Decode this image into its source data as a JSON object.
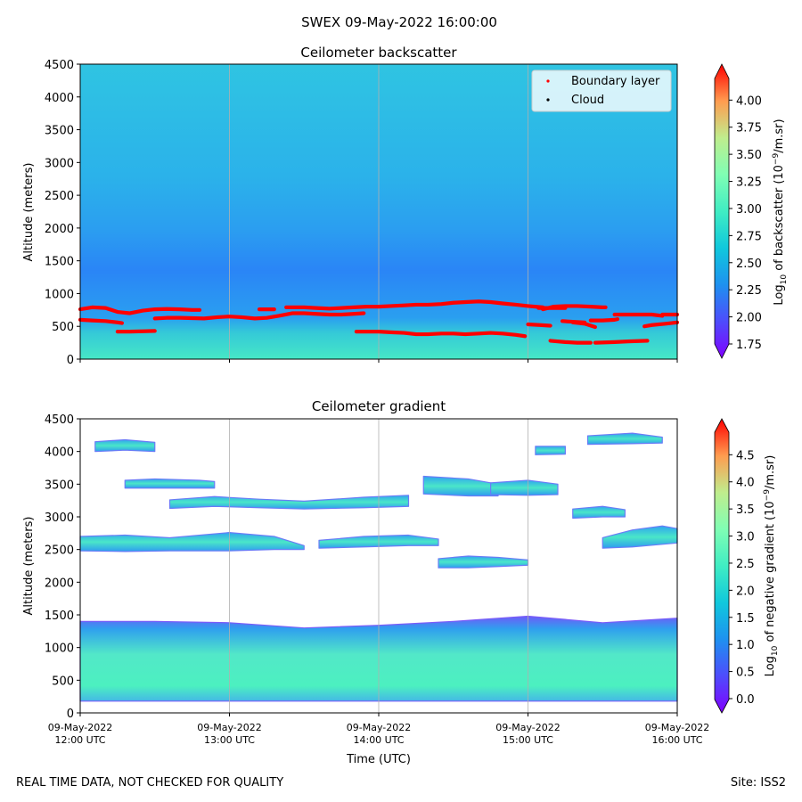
{
  "figure": {
    "suptitle": "SWEX 09-May-2022 16:00:00",
    "footer_left": "REAL TIME DATA, NOT CHECKED FOR QUALITY",
    "footer_right": "Site: ISS2"
  },
  "chart_data": [
    {
      "type": "heatmap",
      "title": "Ceilometer backscatter",
      "ylabel": "Altitude (meters)",
      "xlabel": "",
      "ylim": [
        0,
        4500
      ],
      "yticks": [
        0,
        500,
        1000,
        1500,
        2000,
        2500,
        3000,
        3500,
        4000,
        4500
      ],
      "xtick_labels": [],
      "grid": "vertical at 13:00, 14:00, 15:00 UTC",
      "colorbar": {
        "label_prefix": "Log",
        "label_sub": "10",
        "label_rest": " of backscatter (10",
        "label_sup": "−9",
        "label_end": "/m.sr)",
        "ticks": [
          "1.75",
          "2.00",
          "2.25",
          "2.50",
          "2.75",
          "3.00",
          "3.25",
          "3.50",
          "3.75",
          "4.00"
        ],
        "range": [
          1.75,
          4.2
        ]
      },
      "legend": {
        "placement": "top-right",
        "entries": [
          {
            "label": "Boundary layer",
            "color": "#ff0000"
          },
          {
            "label": "Cloud",
            "color": "#000000"
          }
        ]
      },
      "series": [
        {
          "name": "Boundary layer",
          "color": "#ff0000",
          "segments": [
            {
              "x": [
                12.0,
                12.08,
                12.17,
                12.25,
                12.33,
                12.42,
                12.5,
                12.58,
                12.67,
                12.75,
                12.8
              ],
              "y": [
                760,
                790,
                780,
                720,
                700,
                740,
                760,
                765,
                760,
                750,
                750
              ]
            },
            {
              "x": [
                12.0,
                12.08,
                12.17,
                12.25,
                12.28
              ],
              "y": [
                600,
                590,
                580,
                560,
                550
              ]
            },
            {
              "x": [
                12.25,
                12.33,
                12.42,
                12.5
              ],
              "y": [
                420,
                420,
                425,
                430
              ]
            },
            {
              "x": [
                12.5,
                12.58,
                12.67,
                12.75,
                12.83,
                12.92,
                13.0,
                13.08,
                13.17,
                13.25,
                13.33,
                13.42,
                13.5,
                13.58,
                13.67,
                13.75,
                13.83,
                13.9
              ],
              "y": [
                620,
                630,
                630,
                625,
                620,
                640,
                650,
                640,
                620,
                630,
                660,
                700,
                700,
                690,
                680,
                680,
                690,
                700
              ]
            },
            {
              "x": [
                13.2,
                13.3
              ],
              "y": [
                760,
                760
              ]
            },
            {
              "x": [
                13.38,
                13.5,
                13.58,
                13.67,
                13.75,
                13.83,
                13.92,
                14.0,
                14.08,
                14.17,
                14.25,
                14.33,
                14.42,
                14.5,
                14.58,
                14.67,
                14.75,
                14.83,
                14.92,
                15.0,
                15.1
              ],
              "y": [
                790,
                790,
                780,
                770,
                780,
                790,
                800,
                800,
                810,
                820,
                830,
                830,
                840,
                860,
                870,
                880,
                870,
                850,
                830,
                810,
                790
              ]
            },
            {
              "x": [
                13.85,
                13.92,
                14.0,
                14.08,
                14.17,
                14.25,
                14.33,
                14.42,
                14.5,
                14.58,
                14.67,
                14.75,
                14.83,
                14.92,
                14.98
              ],
              "y": [
                420,
                420,
                420,
                410,
                400,
                380,
                380,
                390,
                390,
                380,
                390,
                400,
                390,
                370,
                350
              ]
            },
            {
              "x": [
                15.0,
                15.08,
                15.15
              ],
              "y": [
                530,
                520,
                510
              ]
            },
            {
              "x": [
                15.1,
                15.17,
                15.25,
                15.33,
                15.42,
                15.5,
                15.52
              ],
              "y": [
                760,
                800,
                810,
                810,
                800,
                790,
                790
              ]
            },
            {
              "x": [
                15.07,
                15.25
              ],
              "y": [
                780,
                780
              ]
            },
            {
              "x": [
                15.23,
                15.3,
                15.38
              ],
              "y": [
                580,
                570,
                560
              ]
            },
            {
              "x": [
                15.3,
                15.38,
                15.45
              ],
              "y": [
                560,
                540,
                490
              ]
            },
            {
              "x": [
                15.42,
                15.5,
                15.58,
                15.6
              ],
              "y": [
                590,
                590,
                600,
                610
              ]
            },
            {
              "x": [
                15.58,
                15.67,
                15.75,
                15.83,
                15.9
              ],
              "y": [
                680,
                680,
                680,
                680,
                660
              ]
            },
            {
              "x": [
                15.9,
                16.0
              ],
              "y": [
                680,
                680
              ]
            },
            {
              "x": [
                15.78,
                15.83,
                15.92,
                16.0
              ],
              "y": [
                500,
                520,
                540,
                560
              ]
            },
            {
              "x": [
                15.15,
                15.25,
                15.33,
                15.42
              ],
              "y": [
                280,
                260,
                250,
                250
              ]
            },
            {
              "x": [
                15.45,
                15.58,
                15.67,
                15.8
              ],
              "y": [
                250,
                260,
                270,
                280
              ]
            }
          ]
        },
        {
          "name": "Cloud",
          "color": "#000000",
          "segments": []
        }
      ]
    },
    {
      "type": "heatmap",
      "title": "Ceilometer gradient",
      "ylabel": "Altitude (meters)",
      "xlabel": "Time (UTC)",
      "ylim": [
        0,
        4500
      ],
      "yticks": [
        0,
        500,
        1000,
        1500,
        2000,
        2500,
        3000,
        3500,
        4000,
        4500
      ],
      "xtick_labels": [
        [
          "09-May-2022",
          "12:00 UTC"
        ],
        [
          "09-May-2022",
          "13:00 UTC"
        ],
        [
          "09-May-2022",
          "14:00 UTC"
        ],
        [
          "09-May-2022",
          "15:00 UTC"
        ],
        [
          "09-May-2022",
          "16:00 UTC"
        ]
      ],
      "grid": "vertical at 13:00, 14:00, 15:00 UTC",
      "colorbar": {
        "label_prefix": "Log",
        "label_sub": "10",
        "label_rest": " of negative gradient (10",
        "label_sup": "−9",
        "label_end": "/m.sr)",
        "ticks": [
          "0.0",
          "0.5",
          "1.0",
          "1.5",
          "2.0",
          "2.5",
          "3.0",
          "3.5",
          "4.0",
          "4.5"
        ],
        "range": [
          0.0,
          4.9
        ]
      },
      "bands": [
        {
          "x": [
            12.0,
            12.5,
            13.0,
            13.5,
            14.0,
            14.5,
            15.0,
            15.5,
            16.0
          ],
          "bottom": [
            180,
            180,
            180,
            180,
            180,
            180,
            180,
            180,
            180
          ],
          "top": [
            1400,
            1400,
            1380,
            1300,
            1340,
            1400,
            1480,
            1380,
            1450
          ],
          "core": 1.4
        },
        {
          "x": [
            12.0,
            12.3,
            12.6,
            13.0,
            13.3,
            13.5
          ],
          "bottom": [
            2480,
            2470,
            2480,
            2480,
            2500,
            2500
          ],
          "top": [
            2700,
            2720,
            2680,
            2760,
            2700,
            2560
          ],
          "core": 1.6
        },
        {
          "x": [
            13.6,
            13.9,
            14.2,
            14.4
          ],
          "bottom": [
            2520,
            2540,
            2560,
            2560
          ],
          "top": [
            2640,
            2700,
            2720,
            2660
          ],
          "core": 1.6
        },
        {
          "x": [
            14.4,
            14.6,
            14.8,
            15.0
          ],
          "bottom": [
            2220,
            2220,
            2240,
            2260
          ],
          "top": [
            2360,
            2400,
            2380,
            2340
          ],
          "core": 1.6
        },
        {
          "x": [
            15.5,
            15.7,
            15.9,
            16.0
          ],
          "bottom": [
            2520,
            2540,
            2580,
            2600
          ],
          "top": [
            2680,
            2800,
            2860,
            2820
          ],
          "core": 1.6
        },
        {
          "x": [
            12.3,
            12.5,
            12.8,
            12.9
          ],
          "bottom": [
            3440,
            3440,
            3440,
            3440
          ],
          "top": [
            3560,
            3580,
            3560,
            3540
          ],
          "core": 1.7
        },
        {
          "x": [
            12.6,
            12.9,
            13.2,
            13.5,
            13.9,
            14.2
          ],
          "bottom": [
            3130,
            3160,
            3140,
            3120,
            3140,
            3160
          ],
          "top": [
            3260,
            3310,
            3270,
            3240,
            3300,
            3330
          ],
          "core": 1.7
        },
        {
          "x": [
            14.3,
            14.6,
            14.8
          ],
          "bottom": [
            3350,
            3320,
            3320
          ],
          "top": [
            3620,
            3580,
            3500
          ],
          "core": 1.8
        },
        {
          "x": [
            14.75,
            15.0,
            15.2
          ],
          "bottom": [
            3340,
            3330,
            3340
          ],
          "top": [
            3520,
            3560,
            3500
          ],
          "core": 1.8
        },
        {
          "x": [
            15.3,
            15.5,
            15.65
          ],
          "bottom": [
            2980,
            3000,
            3000
          ],
          "top": [
            3120,
            3160,
            3110
          ],
          "core": 1.8
        },
        {
          "x": [
            15.4,
            15.7,
            15.9
          ],
          "bottom": [
            4110,
            4120,
            4130
          ],
          "top": [
            4240,
            4280,
            4220
          ],
          "core": 1.7
        },
        {
          "x": [
            12.1,
            12.3,
            12.5
          ],
          "bottom": [
            4000,
            4020,
            4000
          ],
          "top": [
            4150,
            4180,
            4140
          ],
          "core": 1.7
        },
        {
          "x": [
            15.05,
            15.25
          ],
          "bottom": [
            3950,
            3960
          ],
          "top": [
            4080,
            4080
          ],
          "core": 1.7
        }
      ]
    }
  ]
}
